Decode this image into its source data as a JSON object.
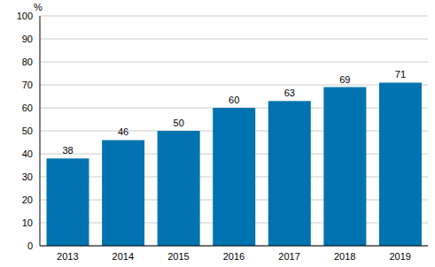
{
  "chart_data": {
    "type": "bar",
    "ylabel": "%",
    "categories": [
      "2013",
      "2014",
      "2015",
      "2016",
      "2017",
      "2018",
      "2019"
    ],
    "values": [
      38,
      46,
      50,
      60,
      63,
      69,
      71
    ],
    "color": "#0073b0",
    "ylim": [
      0,
      100
    ],
    "yticks": [
      0,
      10,
      20,
      30,
      40,
      50,
      60,
      70,
      80,
      90,
      100
    ],
    "grid": true,
    "data_labels": true
  }
}
